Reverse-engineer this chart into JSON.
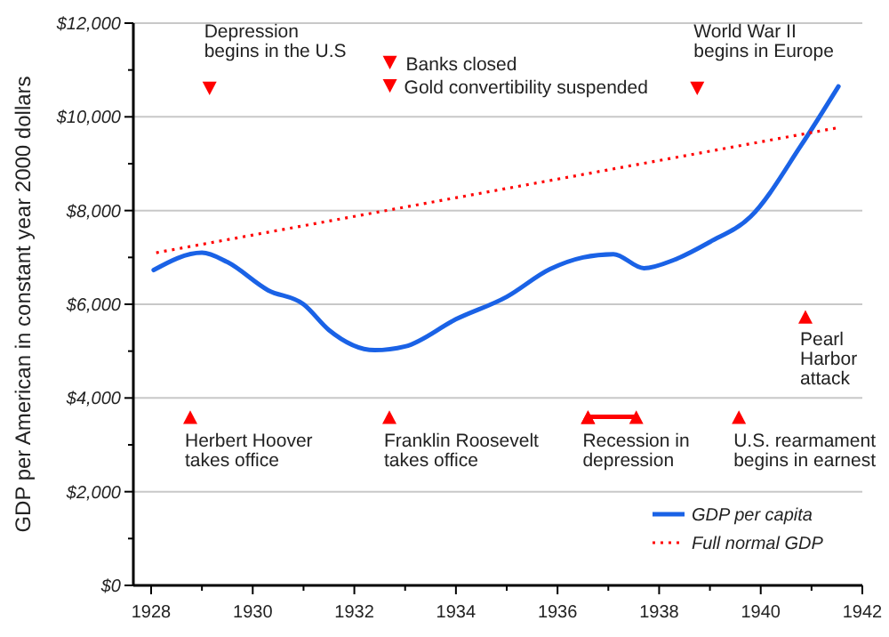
{
  "chart_data": {
    "type": "line",
    "ylabel": "GDP per American in constant year 2000 dollars",
    "xlim": [
      1927.65,
      1942
    ],
    "ylim": [
      0,
      12000
    ],
    "xticks": [
      1928,
      {
        "value": 1929,
        "label": null
      },
      1930,
      {
        "value": 1931,
        "label": null
      },
      1932,
      {
        "value": 1933,
        "label": null
      },
      1934,
      {
        "value": 1935,
        "label": null
      },
      1936,
      {
        "value": 1937,
        "label": null
      },
      1938,
      {
        "value": 1939,
        "label": null
      },
      1940,
      {
        "value": 1941,
        "label": null
      },
      1942
    ],
    "yticks": [
      {
        "value": 0,
        "label": "$0"
      },
      {
        "value": 1000,
        "label": null
      },
      {
        "value": 2000,
        "label": "$2,000"
      },
      {
        "value": 3000,
        "label": null
      },
      {
        "value": 4000,
        "label": "$4,000"
      },
      {
        "value": 5000,
        "label": null
      },
      {
        "value": 6000,
        "label": "$6,000"
      },
      {
        "value": 7000,
        "label": null
      },
      {
        "value": 8000,
        "label": "$8,000"
      },
      {
        "value": 9000,
        "label": null
      },
      {
        "value": 10000,
        "label": "$10,000"
      },
      {
        "value": 11000,
        "label": null
      },
      {
        "value": 12000,
        "label": "$12,000"
      }
    ],
    "grid": "y",
    "legend": "bottom right",
    "series": [
      {
        "name": "GDP per capita",
        "color": "#1a62e6",
        "line_style": "solid",
        "marker": "none",
        "x": [
          1928.05,
          1929,
          1929.5,
          1930.3,
          1931,
          1931.5,
          1932.4,
          1933,
          1934,
          1935,
          1935.85,
          1936.5,
          1937.1,
          1937.7,
          1938.3,
          1939,
          1939.8,
          1940.8,
          1941.53
        ],
        "values": [
          6730,
          7100,
          6900,
          6300,
          6000,
          5450,
          5020,
          5100,
          5680,
          6160,
          6750,
          7000,
          7070,
          6770,
          6950,
          7330,
          7870,
          9400,
          10650
        ]
      },
      {
        "name": "Full normal GDP",
        "color": "#ff0000",
        "line_style": "dotted",
        "marker": "none",
        "x": [
          1928.1,
          1941.53
        ],
        "values": [
          7100,
          9770
        ]
      },
      {
        "color": "#ff0000",
        "line_style": "solid",
        "marker": "triangle",
        "x": [
          1936.6,
          1937.55
        ],
        "values": [
          3600,
          3600
        ]
      }
    ],
    "annotations": [
      {
        "text": "Depression\nbegins in the U.S",
        "x": 1929.15,
        "y": 10600
      },
      {
        "text": "Banks closed",
        "x": 1932.7,
        "y": 11150
      },
      {
        "text": "Gold convertibility suspended",
        "x": 1932.7,
        "y": 10650
      },
      {
        "text": "World War II\nbegins in Europe",
        "x": 1938.75,
        "y": 10600
      },
      {
        "text": "Pearl\nHarbor\nattack",
        "x": 1940.88,
        "y": 5740
      },
      {
        "text": "Herbert Hoover\ntakes office",
        "x": 1928.77,
        "y": 3600
      },
      {
        "text": "Franklin Roosevelt\ntakes office",
        "x": 1932.69,
        "y": 3600
      },
      {
        "text": "Recession in\ndepression",
        "x": 1936.6,
        "y": 3600
      },
      {
        "text": "U.S. rearmament\nbegins in earnest",
        "x": 1939.57,
        "y": 3600
      }
    ]
  }
}
